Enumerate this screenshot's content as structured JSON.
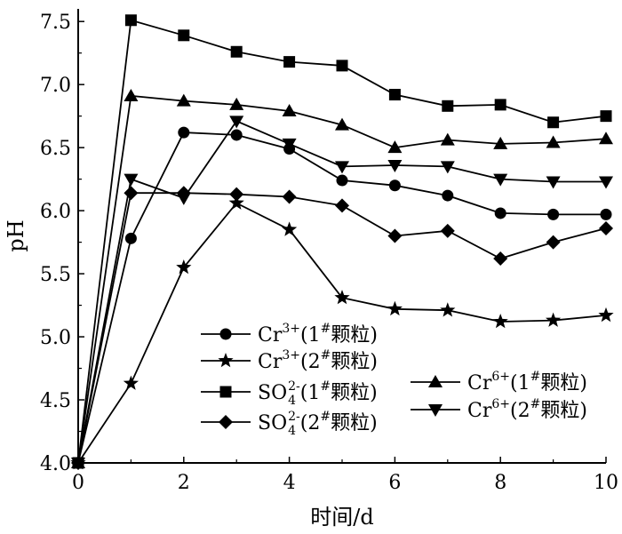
{
  "chart_data": {
    "type": "line",
    "xlabel": "时间/d",
    "ylabel": "pH",
    "xlim": [
      0,
      10
    ],
    "ylim": [
      4.0,
      7.6
    ],
    "xticks": [
      "0",
      "2",
      "4",
      "6",
      "8",
      "10"
    ],
    "yticks": [
      "4.0",
      "4.5",
      "5.0",
      "5.5",
      "6.0",
      "6.5",
      "7.0",
      "7.5"
    ],
    "grid": false,
    "series": [
      {
        "id": "cr3-1",
        "marker": "circle",
        "legend": {
          "ion": "Cr",
          "charge": "3+",
          "pref": "(1",
          "hash": "#",
          "post": "颗粒)"
        },
        "x": [
          0,
          1,
          2,
          3,
          4,
          5,
          6,
          7,
          8,
          9,
          10
        ],
        "y": [
          4.0,
          5.78,
          6.62,
          6.6,
          6.49,
          6.24,
          6.2,
          6.12,
          5.98,
          5.97,
          5.97
        ]
      },
      {
        "id": "cr3-2",
        "marker": "star",
        "legend": {
          "ion": "Cr",
          "charge": "3+",
          "pref": "(2",
          "hash": "#",
          "post": "颗粒)"
        },
        "x": [
          0,
          1,
          2,
          3,
          4,
          5,
          6,
          7,
          8,
          9,
          10
        ],
        "y": [
          4.0,
          4.63,
          5.55,
          6.06,
          5.85,
          5.31,
          5.22,
          5.21,
          5.12,
          5.13,
          5.17
        ]
      },
      {
        "id": "so4-1",
        "marker": "square",
        "legend": {
          "ion": "SO",
          "sub": "4",
          "charge": "2-",
          "pref": "(1",
          "hash": "#",
          "post": "颗粒)"
        },
        "x": [
          0,
          1,
          2,
          3,
          4,
          5,
          6,
          7,
          8,
          9,
          10
        ],
        "y": [
          4.0,
          7.51,
          7.39,
          7.26,
          7.18,
          7.15,
          6.92,
          6.83,
          6.84,
          6.7,
          6.75
        ]
      },
      {
        "id": "so4-2",
        "marker": "diamond",
        "legend": {
          "ion": "SO",
          "sub": "4",
          "charge": "2-",
          "pref": "(2",
          "hash": "#",
          "post": "颗粒)"
        },
        "x": [
          0,
          1,
          2,
          3,
          4,
          5,
          6,
          7,
          8,
          9,
          10
        ],
        "y": [
          4.0,
          6.14,
          6.14,
          6.13,
          6.11,
          6.04,
          5.8,
          5.84,
          5.62,
          5.75,
          5.86
        ]
      },
      {
        "id": "cr6-1",
        "marker": "triangle-up",
        "legend": {
          "ion": "Cr",
          "charge": "6+",
          "pref": "(1",
          "hash": "#",
          "post": "颗粒)"
        },
        "x": [
          0,
          1,
          2,
          3,
          4,
          5,
          6,
          7,
          8,
          9,
          10
        ],
        "y": [
          4.0,
          6.91,
          6.87,
          6.84,
          6.79,
          6.68,
          6.5,
          6.56,
          6.53,
          6.54,
          6.57
        ]
      },
      {
        "id": "cr6-2",
        "marker": "triangle-down",
        "legend": {
          "ion": "Cr",
          "charge": "6+",
          "pref": "(2",
          "hash": "#",
          "post": "颗粒)"
        },
        "x": [
          0,
          1,
          2,
          3,
          4,
          5,
          6,
          7,
          8,
          9,
          10
        ],
        "y": [
          4.0,
          6.25,
          6.1,
          6.71,
          6.53,
          6.35,
          6.36,
          6.35,
          6.25,
          6.23,
          6.23
        ]
      }
    ]
  }
}
